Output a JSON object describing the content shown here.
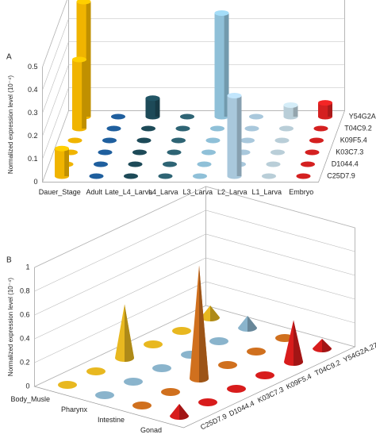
{
  "chart_data": [
    {
      "type": "bar3d",
      "marker": "cylinder",
      "panel_label": "A",
      "zlabel": "Normalized expression level (10⁻⁴)",
      "categories": [
        "Dauer_Stage",
        "Adult",
        "Late_L4_Larva",
        "L4_Larva",
        "L3_Larva",
        "L2_Larva",
        "L1_Larva",
        "Embryo"
      ],
      "category_colors": [
        "#f0b400",
        "#1f5f9e",
        "#1d4a58",
        "#2e6474",
        "#8fc0d8",
        "#a9c8dc",
        "#b9ced8",
        "#d42020"
      ],
      "series": [
        {
          "name": "C25D7.9",
          "values": [
            0.12,
            0,
            0,
            0,
            0,
            0.35,
            0,
            0
          ]
        },
        {
          "name": "D1044.4",
          "values": [
            0,
            0,
            0,
            0,
            0,
            0,
            0,
            0
          ]
        },
        {
          "name": "K03C7.3",
          "values": [
            0,
            0,
            0,
            0,
            0,
            0,
            0,
            0
          ]
        },
        {
          "name": "K09F5.4",
          "values": [
            0,
            0,
            0,
            0,
            0,
            0,
            0,
            0
          ]
        },
        {
          "name": "T04C9.2",
          "values": [
            0.3,
            0,
            0,
            0,
            0,
            0,
            0,
            0
          ]
        },
        {
          "name": "Y54G2A.27",
          "values": [
            0.5,
            0,
            0.08,
            0,
            0.45,
            0,
            0.05,
            0.06
          ]
        }
      ],
      "zlim": [
        0,
        0.5
      ],
      "zticks": [
        0,
        0.1,
        0.2,
        0.3,
        0.4,
        0.5
      ]
    },
    {
      "type": "bar3d",
      "marker": "cone",
      "panel_label": "B",
      "zlabel": "Normalized expression level (10⁻⁴)",
      "categories": [
        "Body_Musle",
        "Pharynx",
        "Intestine",
        "Gonad"
      ],
      "category_colors": [
        "#e8b820",
        "#8ab4cc",
        "#d0701e",
        "#d81c1c"
      ],
      "series": [
        {
          "name": "C25D7.9",
          "values": [
            0,
            0,
            0,
            0.1
          ]
        },
        {
          "name": "D1044.4",
          "values": [
            0,
            0,
            0,
            0
          ]
        },
        {
          "name": "K03C7.3",
          "values": [
            0.45,
            0,
            0.95,
            0
          ]
        },
        {
          "name": "K09F5.4",
          "values": [
            0,
            0,
            0,
            0
          ]
        },
        {
          "name": "T04C9.2",
          "values": [
            0,
            0,
            0,
            0.35
          ]
        },
        {
          "name": "Y54G2A.27",
          "values": [
            0.1,
            0.1,
            0,
            0.08
          ]
        }
      ],
      "zlim": [
        0,
        1
      ],
      "zticks": [
        0,
        0.2,
        0.4,
        0.6,
        0.8,
        1
      ]
    }
  ]
}
